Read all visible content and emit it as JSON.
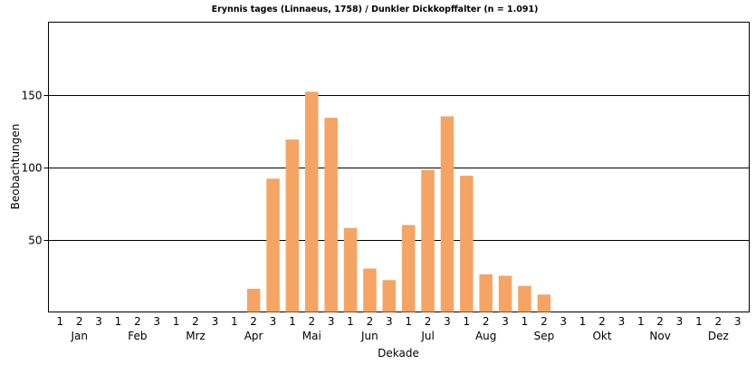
{
  "chart_data": {
    "type": "bar",
    "title": "Erynnis tages (Linnaeus, 1758) / Dunkler Dickkopffalter (n = 1.091)",
    "xlabel": "Dekade",
    "ylabel": "Beobachtungen",
    "ylim": [
      0,
      200
    ],
    "yticks": [
      50,
      100,
      150
    ],
    "grid": true,
    "bar_color": "#f5a463",
    "grid_color": "#000000",
    "decade_labels": [
      "1",
      "2",
      "3"
    ],
    "months": [
      "Jan",
      "Feb",
      "Mrz",
      "Apr",
      "Mai",
      "Jun",
      "Jul",
      "Aug",
      "Sep",
      "Okt",
      "Nov",
      "Dez"
    ],
    "categories": [
      "Jan-1",
      "Jan-2",
      "Jan-3",
      "Feb-1",
      "Feb-2",
      "Feb-3",
      "Mrz-1",
      "Mrz-2",
      "Mrz-3",
      "Apr-1",
      "Apr-2",
      "Apr-3",
      "Mai-1",
      "Mai-2",
      "Mai-3",
      "Jun-1",
      "Jun-2",
      "Jun-3",
      "Jul-1",
      "Jul-2",
      "Jul-3",
      "Aug-1",
      "Aug-2",
      "Aug-3",
      "Sep-1",
      "Sep-2",
      "Sep-3",
      "Okt-1",
      "Okt-2",
      "Okt-3",
      "Nov-1",
      "Nov-2",
      "Nov-3",
      "Dez-1",
      "Dez-2",
      "Dez-3"
    ],
    "values": [
      0,
      0,
      0,
      0,
      0,
      0,
      0,
      0,
      0,
      0,
      16,
      92,
      119,
      152,
      134,
      58,
      30,
      22,
      60,
      98,
      135,
      94,
      26,
      25,
      18,
      12,
      0,
      0,
      0,
      0,
      0,
      0,
      0,
      0,
      0,
      0
    ]
  }
}
